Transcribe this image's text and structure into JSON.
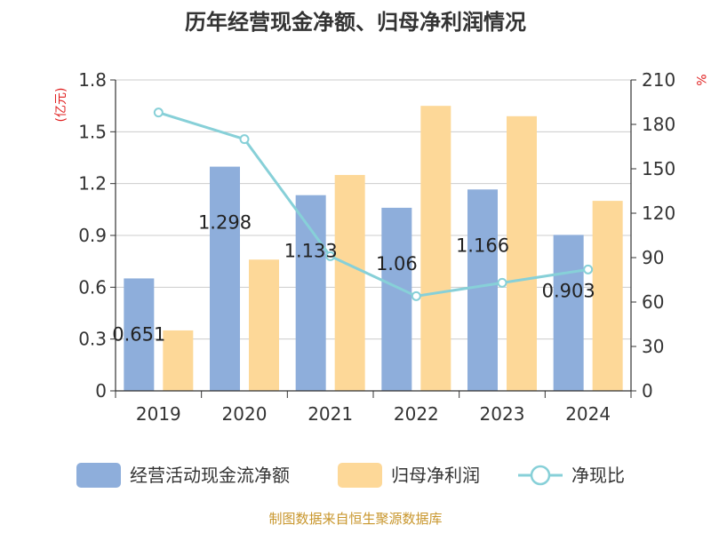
{
  "chart_data": {
    "type": "bar",
    "title": "历年经营现金净额、归母净利润情况",
    "categories": [
      "2019",
      "2020",
      "2021",
      "2022",
      "2023",
      "2024"
    ],
    "series": [
      {
        "name": "经营活动现金流净额",
        "type": "bar",
        "axis": "left",
        "color": "#8eaedb",
        "values": [
          0.651,
          1.298,
          1.133,
          1.06,
          1.166,
          0.903
        ],
        "labels": [
          "0.651",
          "1.298",
          "1.133",
          "1.06",
          "1.166",
          "0.903"
        ]
      },
      {
        "name": "归母净利润",
        "type": "bar",
        "axis": "left",
        "color": "#fdd898",
        "values": [
          0.35,
          0.76,
          1.25,
          1.65,
          1.59,
          1.1
        ]
      },
      {
        "name": "净现比",
        "type": "line",
        "axis": "right",
        "color": "#87d0d8",
        "values": [
          188,
          170,
          91,
          64,
          73,
          82
        ]
      }
    ],
    "left_axis": {
      "unit": "(亿元)",
      "ylim": [
        0,
        1.8
      ],
      "ticks": [
        "0",
        "0.3",
        "0.6",
        "0.9",
        "1.2",
        "1.5",
        "1.8"
      ]
    },
    "right_axis": {
      "unit": "%",
      "ylim": [
        0,
        210
      ],
      "ticks": [
        "0",
        "30",
        "60",
        "90",
        "120",
        "150",
        "180",
        "210"
      ]
    },
    "grid": true,
    "legend_position": "bottom",
    "source": "制图数据来自恒生聚源数据库"
  }
}
